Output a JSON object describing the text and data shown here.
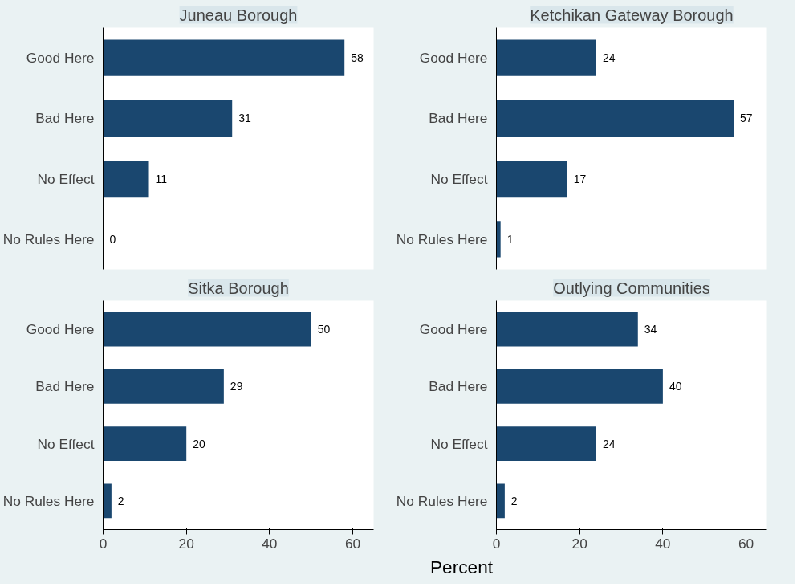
{
  "chart_data": [
    {
      "type": "bar",
      "orientation": "horizontal",
      "title": "Juneau Borough",
      "categories": [
        "Good Here",
        "Bad Here",
        "No Effect",
        "No Rules Here"
      ],
      "values": [
        58,
        31,
        11,
        0
      ],
      "color": "#1a476f",
      "data_labels": true,
      "xlim": [
        0,
        65
      ],
      "xticks": [
        0,
        20,
        40,
        60
      ],
      "tick_labels": "y"
    },
    {
      "type": "bar",
      "orientation": "horizontal",
      "title": "Ketchikan Gateway Borough",
      "categories": [
        "Good Here",
        "Bad Here",
        "No Effect",
        "No Rules Here"
      ],
      "values": [
        24,
        57,
        17,
        1
      ],
      "color": "#1a476f",
      "data_labels": true,
      "xlim": [
        0,
        65
      ],
      "xticks": [
        0,
        20,
        40,
        60
      ],
      "tick_labels": "y"
    },
    {
      "type": "bar",
      "orientation": "horizontal",
      "title": "Sitka Borough",
      "categories": [
        "Good Here",
        "Bad Here",
        "No Effect",
        "No Rules Here"
      ],
      "values": [
        50,
        29,
        20,
        2
      ],
      "color": "#1a476f",
      "data_labels": true,
      "xlim": [
        0,
        65
      ],
      "xticks": [
        0,
        20,
        40,
        60
      ],
      "xlabel": "Percent"
    },
    {
      "type": "bar",
      "orientation": "horizontal",
      "title": "Outlying Communities",
      "categories": [
        "Good Here",
        "Bad Here",
        "No Effect",
        "No Rules Here"
      ],
      "values": [
        34,
        40,
        24,
        2
      ],
      "color": "#1a476f",
      "data_labels": true,
      "xlim": [
        0,
        65
      ],
      "xticks": [
        0,
        20,
        40,
        60
      ]
    }
  ]
}
